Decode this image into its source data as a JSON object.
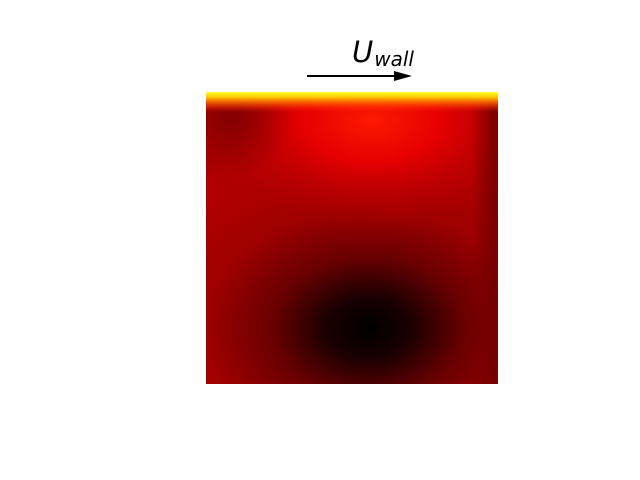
{
  "figure": {
    "label_main": "U",
    "label_sub": "wall"
  },
  "colors": {
    "background": "#ffffff",
    "arrow": "#000000",
    "colormap": [
      "#000000",
      "#8b0000",
      "#ff0000",
      "#ffff00"
    ]
  },
  "icons": {
    "wall_direction": "arrow-right-icon"
  }
}
